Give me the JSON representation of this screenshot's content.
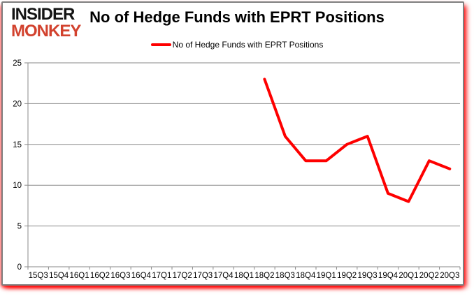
{
  "logo": {
    "line1": "INSIDER",
    "line2": "MONKEY"
  },
  "title": "No of Hedge Funds with EPRT Positions",
  "legend": {
    "label": "No of Hedge Funds with EPRT Positions"
  },
  "colors": {
    "series": "#fe0000",
    "grid": "#8a8a8a",
    "axis": "#8a8a8a",
    "text": "#000000",
    "logo_black": "#141414",
    "logo_red": "#d2422e",
    "card_border": "#7f7f7f",
    "glow": "#ff0000"
  },
  "chart_data": {
    "type": "line",
    "title": "No of Hedge Funds with EPRT Positions",
    "xlabel": "",
    "ylabel": "",
    "categories": [
      "15Q3",
      "15Q4",
      "16Q1",
      "16Q2",
      "16Q3",
      "16Q4",
      "17Q1",
      "17Q2",
      "17Q3",
      "17Q4",
      "18Q1",
      "18Q2",
      "18Q3",
      "18Q4",
      "19Q1",
      "19Q2",
      "19Q3",
      "19Q4",
      "20Q1",
      "20Q2",
      "20Q3"
    ],
    "series": [
      {
        "name": "No of Hedge Funds with EPRT Positions",
        "values": [
          null,
          null,
          null,
          null,
          null,
          null,
          null,
          null,
          null,
          null,
          null,
          23,
          16,
          13,
          13,
          15,
          16,
          9,
          8,
          13,
          12
        ]
      }
    ],
    "ylim": [
      0,
      25
    ],
    "yticks": [
      0,
      5,
      10,
      15,
      20,
      25
    ],
    "grid": true,
    "legend_position": "top"
  }
}
